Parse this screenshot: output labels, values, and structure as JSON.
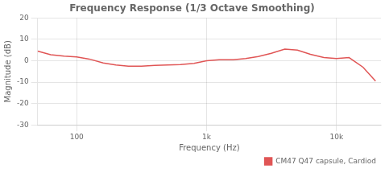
{
  "chart_data": {
    "type": "line",
    "title": "Frequency Response (1/3 Octave Smoothing)",
    "xlabel": "Frequency (Hz)",
    "ylabel": "Magnitude (dB)",
    "log": "x",
    "grid": true,
    "legend": "lower right",
    "x": [
      50,
      63,
      80,
      100,
      125,
      160,
      200,
      250,
      315,
      400,
      500,
      630,
      800,
      1000,
      1250,
      1600,
      2000,
      2500,
      3150,
      4000,
      5000,
      6300,
      8000,
      10000,
      12500,
      16000,
      20000
    ],
    "series": [
      {
        "name": "CM47 Q47 capsule, Cardiod",
        "color": "#e05555",
        "values": [
          4.5,
          2.8,
          2.2,
          1.8,
          0.8,
          -1.0,
          -2.0,
          -2.5,
          -2.5,
          -2.2,
          -2.0,
          -1.8,
          -1.2,
          0.0,
          0.5,
          0.5,
          1.0,
          2.0,
          3.5,
          5.5,
          5.0,
          3.0,
          1.5,
          1.0,
          1.5,
          -3.0,
          -9.5
        ]
      }
    ],
    "xlim": [
      50,
      22000
    ],
    "xticks": [
      {
        "value": 100,
        "label": "100"
      },
      {
        "value": 1000,
        "label": "1k"
      },
      {
        "value": 10000,
        "label": "10k"
      }
    ],
    "ylim": [
      -30,
      20
    ],
    "yticks": [
      20,
      10,
      0,
      -10,
      -20,
      -30
    ]
  }
}
